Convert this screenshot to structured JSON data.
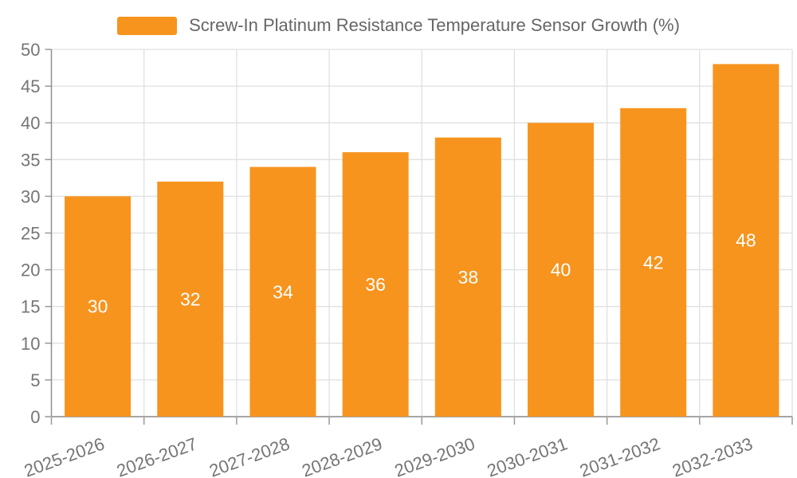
{
  "legend": {
    "label": "Screw-In Platinum Resistance Temperature Sensor Growth (%)",
    "swatch_color": "#f7941e",
    "text_color": "#666666"
  },
  "chart_data": {
    "type": "bar",
    "title": "Screw-In Platinum Resistance Temperature Sensor Growth (%)",
    "categories": [
      "2025-2026",
      "2026-2027",
      "2027-2028",
      "2028-2029",
      "2029-2030",
      "2030-2031",
      "2031-2032",
      "2032-2033"
    ],
    "series": [
      {
        "name": "Screw-In Platinum Resistance Temperature Sensor Growth (%)",
        "values": [
          30,
          32,
          34,
          36,
          38,
          40,
          42,
          48
        ]
      }
    ],
    "xlabel": "",
    "ylabel": "",
    "ylim": [
      0,
      50
    ],
    "yticks": [
      0,
      5,
      10,
      15,
      20,
      25,
      30,
      35,
      40,
      45,
      50
    ],
    "grid": true,
    "legend_position": "top-center",
    "x_label_rotation": -20,
    "bar_value_labels_position": "inside-middle",
    "colors": {
      "bar": "#f7941e",
      "bar_label": "#ffffff",
      "grid": "#e0e0e0",
      "axis": "#999999",
      "tick_label": "#757575"
    }
  }
}
